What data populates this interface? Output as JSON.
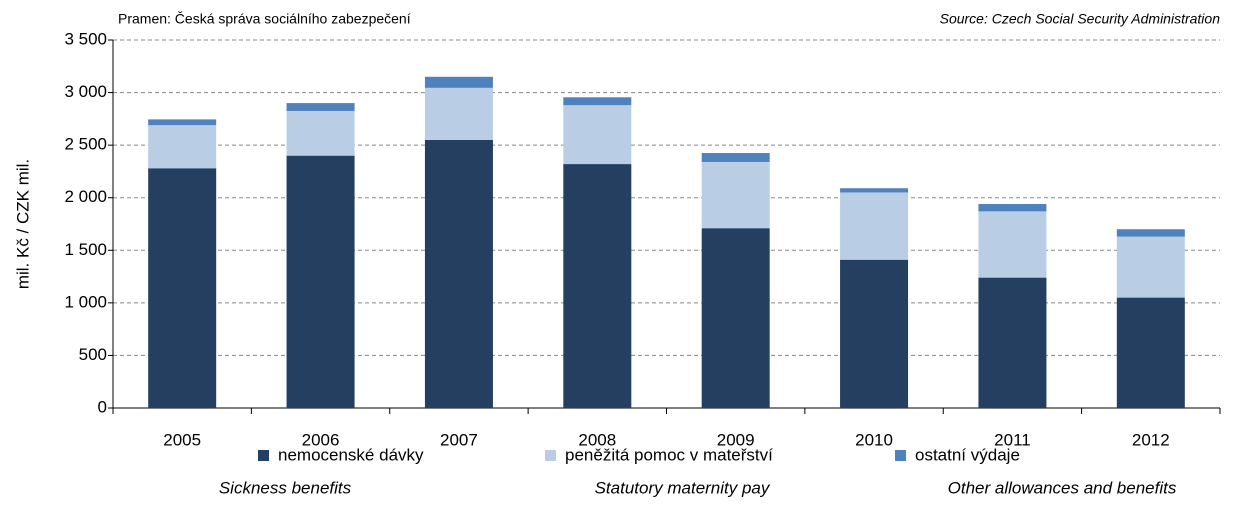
{
  "chart_data": {
    "type": "stacked_bar",
    "source_cz": "Pramen: Česká správa sociálního zabezpečení",
    "source_en": "Source: Czech Social Security Administration",
    "y_label": "mil. Kč / CZK mil.",
    "categories": [
      "2005",
      "2006",
      "2007",
      "2008",
      "2009",
      "2010",
      "2011",
      "2012"
    ],
    "series": [
      {
        "name": "nemocenské dávky",
        "name_en": "Sickness benefits",
        "color": "#243f60",
        "values": [
          2280,
          2400,
          2550,
          2320,
          1710,
          1410,
          1240,
          1050
        ]
      },
      {
        "name": "peněžitá pomoc v mateřství",
        "name_en": "Statutory maternity pay",
        "color": "#b9cde5",
        "values": [
          410,
          425,
          495,
          560,
          630,
          640,
          630,
          580
        ]
      },
      {
        "name": "ostatní výdaje",
        "name_en": "Other allowances and benefits",
        "color": "#4f81bd",
        "values": [
          55,
          75,
          105,
          75,
          85,
          40,
          70,
          70
        ]
      }
    ],
    "ylim": [
      0,
      3500
    ],
    "yticks": [
      0,
      500,
      {
        "value": 1000,
        "label": "1 000"
      },
      {
        "value": 1500,
        "label": "1 500"
      },
      {
        "value": 2000,
        "label": "2 000"
      },
      {
        "value": 2500,
        "label": "2 500"
      },
      {
        "value": 3000,
        "label": "3 000"
      },
      {
        "value": 3500,
        "label": "3 500"
      }
    ],
    "grid": true
  }
}
